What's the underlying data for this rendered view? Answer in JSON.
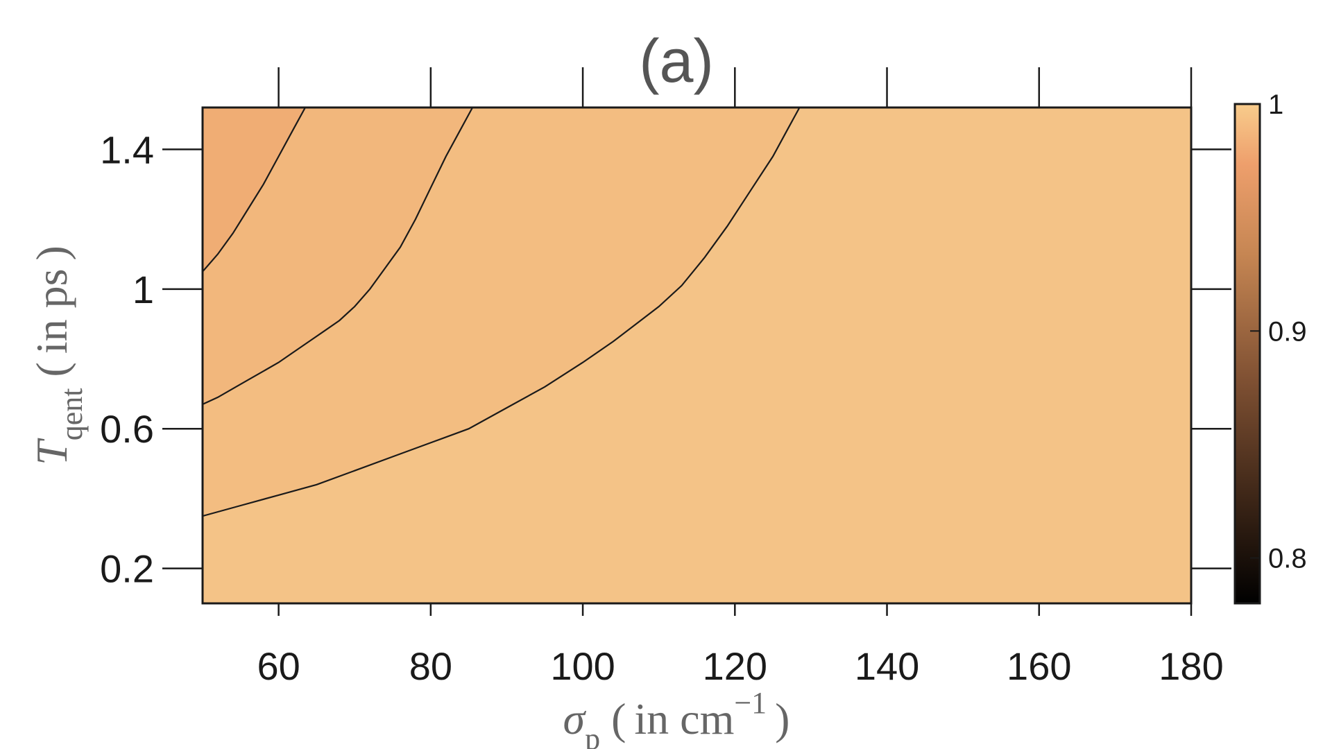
{
  "chart_data": {
    "type": "contour",
    "title": "(a)",
    "xlabel": {
      "symbol": "σ",
      "subscript": "p",
      "paren_text": "in cm",
      "superscript": "−1"
    },
    "ylabel": {
      "symbol": "T",
      "subscript": "qent",
      "paren_text": "in ps"
    },
    "xlim": [
      50,
      180
    ],
    "ylim": [
      0.1,
      1.52
    ],
    "xticks": [
      60,
      80,
      100,
      120,
      140,
      160,
      180
    ],
    "xtick_labels": [
      "60",
      "80",
      "100",
      "120",
      "140",
      "160",
      "180"
    ],
    "yticks": [
      0.2,
      0.6,
      1.0,
      1.4
    ],
    "ytick_labels": [
      "0.2",
      "0.6",
      "1",
      "1.4"
    ],
    "colorbar": {
      "range": [
        0.78,
        1.0
      ],
      "ticks": [
        0.8,
        0.9,
        1.0
      ],
      "tick_labels": [
        "0.8",
        "0.9",
        "1"
      ],
      "colormap": "copper"
    },
    "contour_lines": [
      {
        "points": [
          [
            50,
            1.05
          ],
          [
            52,
            1.1
          ],
          [
            54,
            1.16
          ],
          [
            56,
            1.23
          ],
          [
            58,
            1.3
          ],
          [
            60,
            1.38
          ],
          [
            62,
            1.46
          ],
          [
            63.5,
            1.52
          ]
        ]
      },
      {
        "points": [
          [
            50,
            0.67
          ],
          [
            52,
            0.69
          ],
          [
            54,
            0.715
          ],
          [
            56,
            0.74
          ],
          [
            58,
            0.765
          ],
          [
            60,
            0.79
          ],
          [
            62,
            0.82
          ],
          [
            64,
            0.85
          ],
          [
            66,
            0.88
          ],
          [
            68,
            0.91
          ],
          [
            70,
            0.95
          ],
          [
            72,
            1.0
          ],
          [
            74,
            1.06
          ],
          [
            76,
            1.12
          ],
          [
            78,
            1.2
          ],
          [
            80,
            1.29
          ],
          [
            82,
            1.38
          ],
          [
            84,
            1.46
          ],
          [
            85.5,
            1.52
          ]
        ]
      },
      {
        "points": [
          [
            50,
            0.35
          ],
          [
            55,
            0.38
          ],
          [
            60,
            0.41
          ],
          [
            65,
            0.44
          ],
          [
            70,
            0.48
          ],
          [
            75,
            0.52
          ],
          [
            80,
            0.56
          ],
          [
            85,
            0.6
          ],
          [
            90,
            0.66
          ],
          [
            95,
            0.72
          ],
          [
            100,
            0.79
          ],
          [
            104,
            0.85
          ],
          [
            107,
            0.9
          ],
          [
            110,
            0.95
          ],
          [
            113,
            1.01
          ],
          [
            116,
            1.09
          ],
          [
            119,
            1.18
          ],
          [
            122,
            1.28
          ],
          [
            125,
            1.38
          ],
          [
            127,
            1.46
          ],
          [
            128.5,
            1.52
          ]
        ]
      }
    ],
    "regions": [
      {
        "level": "lowest",
        "color": "#f0ad74"
      },
      {
        "level": "low",
        "color": "#f2b77c"
      },
      {
        "level": "mid",
        "color": "#f3bd81"
      },
      {
        "level": "high",
        "color": "#f4c387"
      }
    ],
    "grid": false,
    "legend": "none"
  }
}
